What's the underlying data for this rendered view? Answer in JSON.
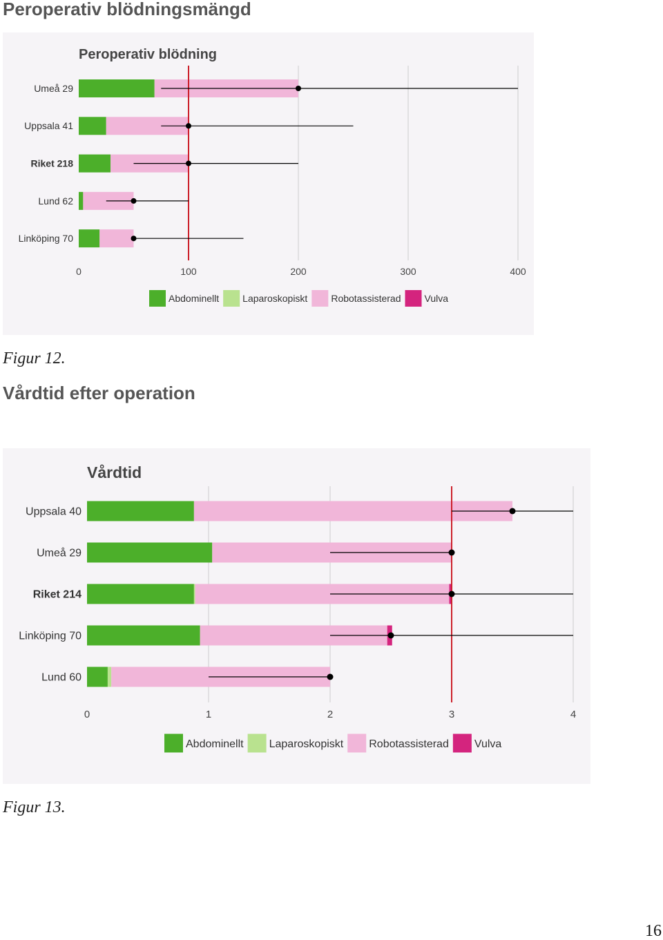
{
  "page": {
    "heading1": "Peroperativ blödningsmängd",
    "caption1": "Figur 12.",
    "heading2": "Vårdtid efter operation",
    "caption2": "Figur 13.",
    "page_number": "16"
  },
  "colors": {
    "abdominellt": "#4caf2a",
    "laparoskopiskt": "#b9e28f",
    "robotassisterad": "#f1b6d9",
    "vulva": "#d4247e",
    "reference_line": "#cc1f2a",
    "error_bar": "#000000",
    "grid": "#cccccc",
    "panel": "#f6f4f7"
  },
  "chart_data": [
    {
      "type": "bar",
      "stacked": true,
      "orientation": "horizontal",
      "title": "Peroperativ blödning",
      "xlabel": "",
      "ylabel": "",
      "xlim": [
        0,
        400
      ],
      "xticks": [
        "0",
        "100",
        "200",
        "300",
        "400"
      ],
      "grid": true,
      "legend_position": "bottom",
      "reference_line": 100,
      "categories": [
        "Umeå 29",
        "Uppsala 41",
        "Riket 218",
        "Lund 62",
        "Linköping 70"
      ],
      "bold_categories": [
        "Riket 218"
      ],
      "series": [
        {
          "name": "Abdominellt",
          "values": [
            69,
            25,
            29,
            4,
            19
          ]
        },
        {
          "name": "Laparoskopiskt",
          "values": [
            0,
            0,
            0,
            0,
            0
          ]
        },
        {
          "name": "Robotassisterad",
          "values": [
            131,
            75,
            71,
            46,
            31
          ]
        },
        {
          "name": "Vulva",
          "values": [
            0,
            0,
            0,
            0,
            0
          ]
        }
      ],
      "median": [
        200,
        100,
        100,
        50,
        50
      ],
      "range_low": [
        75,
        75,
        50,
        25,
        50
      ],
      "range_high": [
        400,
        250,
        200,
        100,
        150
      ]
    },
    {
      "type": "bar",
      "stacked": true,
      "orientation": "horizontal",
      "title": "Vårdtid",
      "xlabel": "",
      "ylabel": "",
      "xlim": [
        0,
        4
      ],
      "xticks": [
        "0",
        "1",
        "2",
        "3",
        "4"
      ],
      "grid": true,
      "legend_position": "bottom",
      "reference_line": 3,
      "categories": [
        "Uppsala 40",
        "Umeå 29",
        "Riket 214",
        "Linköping 70",
        "Lund 60"
      ],
      "bold_categories": [
        "Riket 214"
      ],
      "series": [
        {
          "name": "Abdominellt",
          "values": [
            0.88,
            1.03,
            0.88,
            0.93,
            0.17
          ]
        },
        {
          "name": "Laparoskopiskt",
          "values": [
            0,
            0,
            0.01,
            0,
            0.03
          ]
        },
        {
          "name": "Robotassisterad",
          "values": [
            2.62,
            1.97,
            2.09,
            1.54,
            1.8
          ]
        },
        {
          "name": "Vulva",
          "values": [
            0,
            0,
            0.02,
            0.04,
            0
          ]
        }
      ],
      "median": [
        3.5,
        3,
        3,
        2.5,
        2
      ],
      "range_low": [
        3,
        2,
        2,
        2,
        1
      ],
      "range_high": [
        4,
        3,
        4,
        4,
        2
      ]
    }
  ]
}
